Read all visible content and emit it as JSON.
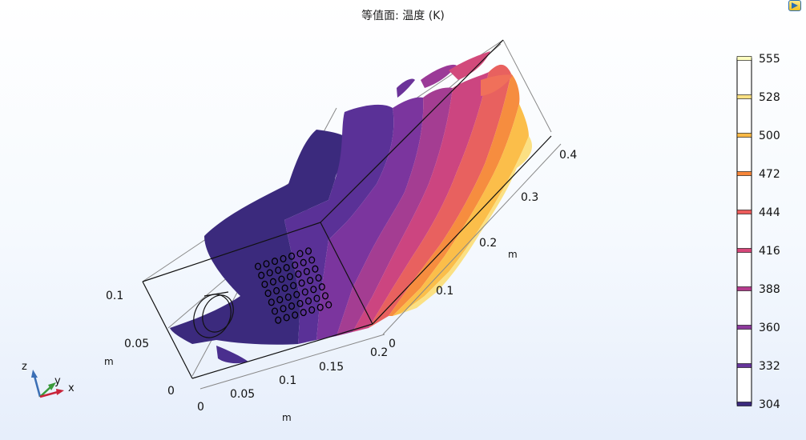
{
  "title": "等值面: 温度 (K)",
  "colorbar": {
    "labels": [
      "555",
      "528",
      "500",
      "472",
      "444",
      "416",
      "388",
      "360",
      "332",
      "304"
    ],
    "colors": [
      "#fcfdbf",
      "#fbe183",
      "#fcb945",
      "#f8873a",
      "#ec5c5b",
      "#d7477a",
      "#b53b8c",
      "#8d3a9c",
      "#67359c",
      "#3b2a7d"
    ]
  },
  "axes": {
    "x_ticks": [
      "0",
      "0.05",
      "0.1",
      "0.15",
      "0.2"
    ],
    "x_unit": "m",
    "y_ticks": [
      "0",
      "0.1",
      "0.2",
      "0.3",
      "0.4"
    ],
    "y_unit": "m",
    "z_ticks": [
      "0",
      "0.05",
      "0.1"
    ],
    "z_unit": "m"
  },
  "triad": {
    "z": "z",
    "y": "y",
    "x": "x"
  },
  "icons": {
    "corner": "play-icon"
  }
}
